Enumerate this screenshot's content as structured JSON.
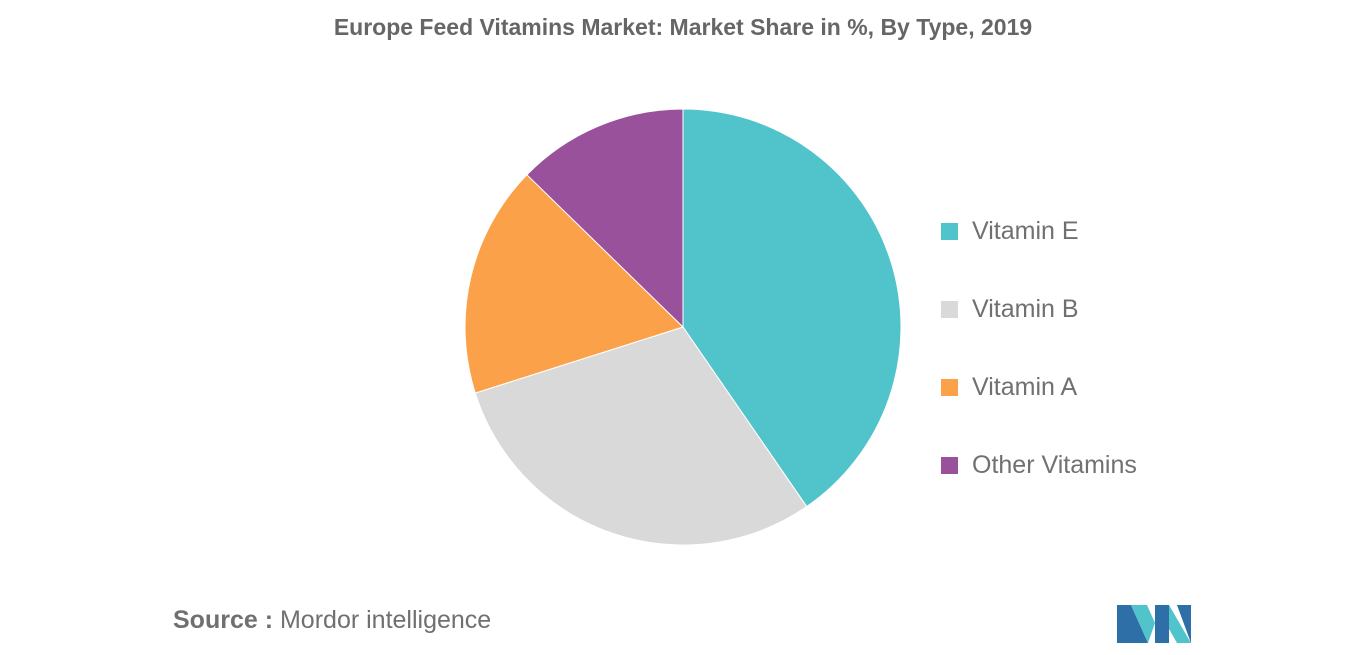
{
  "chart_data": {
    "type": "pie",
    "title": "Europe Feed Vitamins Market: Market Share in %, By Type, 2019",
    "legend_position": "right",
    "slices": [
      {
        "name": "Vitamin E",
        "value": 40.4,
        "color": "#50c4ca"
      },
      {
        "name": "Vitamin B",
        "value": 29.7,
        "color": "#d9d9d9"
      },
      {
        "name": "Vitamin A",
        "value": 17.2,
        "color": "#fba14a"
      },
      {
        "name": "Other Vitamins",
        "value": 12.7,
        "color": "#9a519b"
      }
    ]
  },
  "source": {
    "label": "Source :",
    "text": "Mordor intelligence"
  },
  "logo": {
    "icon": "mordor-intelligence-logo-icon",
    "colors": [
      "#2e6fa8",
      "#50c4ca"
    ]
  }
}
